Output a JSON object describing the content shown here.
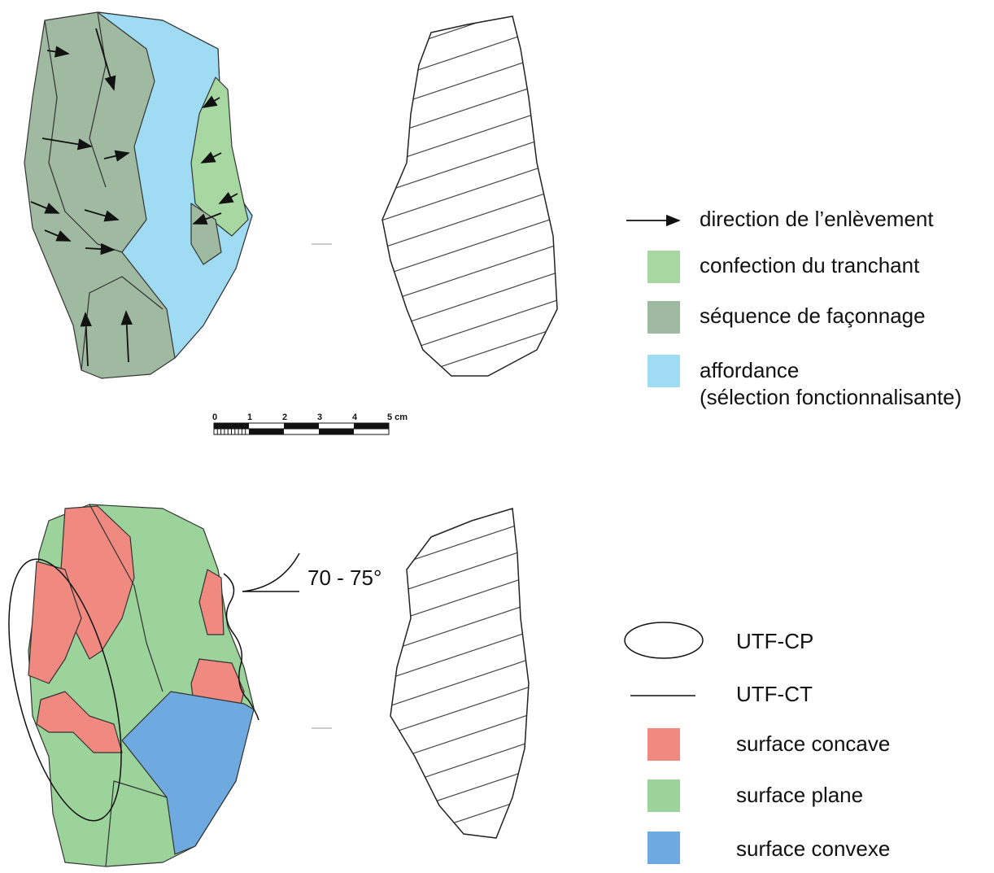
{
  "legend_top": {
    "items": [
      {
        "label": "direction de l’enlèvement"
      },
      {
        "label": "confection du tranchant",
        "color": "#a7d8a2"
      },
      {
        "label": "séquence de façonnage",
        "color": "#a0b9a1"
      },
      {
        "label": "affordance",
        "sublabel": "(sélection fonctionnalisante)",
        "color": "#9fdcf3"
      }
    ]
  },
  "scale_bar": {
    "labels": [
      "0",
      "1",
      "2",
      "3",
      "4",
      "5 cm"
    ]
  },
  "angle_label": "70 - 75°",
  "legend_bottom": {
    "items": [
      {
        "label": "UTF-CP"
      },
      {
        "label": "UTF-CT"
      },
      {
        "label": "surface concave",
        "color": "#f08a80"
      },
      {
        "label": "surface plane",
        "color": "#9cd39b"
      },
      {
        "label": "surface convexe",
        "color": "#6eaadf"
      }
    ]
  }
}
